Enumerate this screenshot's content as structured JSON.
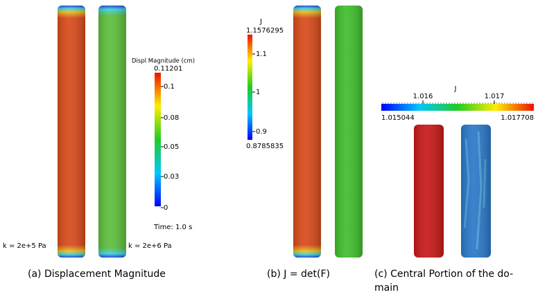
{
  "panels": [
    {
      "colorbar_title": "Displ Magnitude (cm)",
      "max_label": "0.11201",
      "ticks": [
        "0.1",
        "0.08",
        "0.05",
        "0.03",
        "0"
      ],
      "time": "Time: 1.0 s",
      "left_label": "k = 2e+5 Pa",
      "right_label": "k = 2e+6 Pa",
      "caption": "(a)  Displacement Magnitude"
    },
    {
      "colorbar_title": "J",
      "max_label": "1.1576295",
      "ticks": [
        "1.1",
        "1",
        "0.9"
      ],
      "min_label": "0.8785835",
      "caption": "(b)  J = det(F)"
    },
    {
      "colorbar_title": "J",
      "ticks": [
        "1.016",
        "1.017"
      ],
      "min_label": "1.015044",
      "max_label": "1.017708",
      "caption_lines": [
        "(c)  Central Portion of the do-",
        "main"
      ]
    }
  ]
}
